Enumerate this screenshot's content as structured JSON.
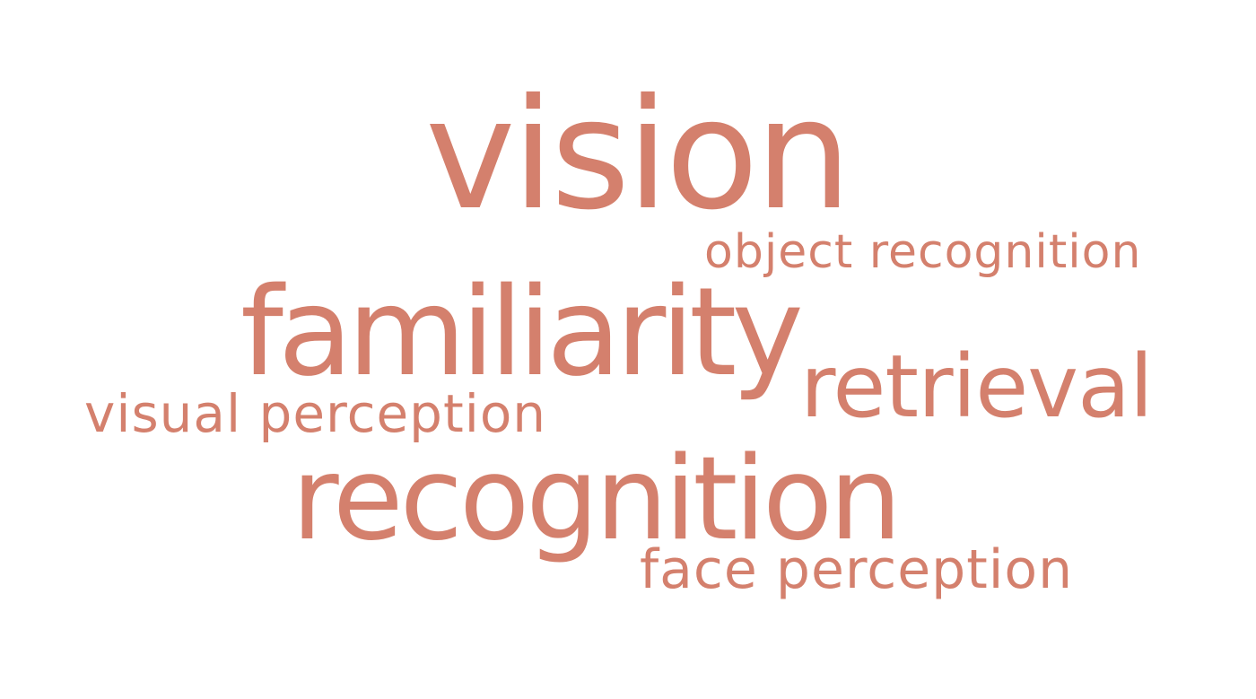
{
  "colors": {
    "word": "#d4806d",
    "background": "#ffffff"
  },
  "words": {
    "vision": "vision",
    "object_recognition": "object recognition",
    "familiarity": "familiarity",
    "retrieval": "retrieval",
    "visual_perception": "visual perception",
    "recognition": "recognition",
    "face_perception": "face perception"
  }
}
